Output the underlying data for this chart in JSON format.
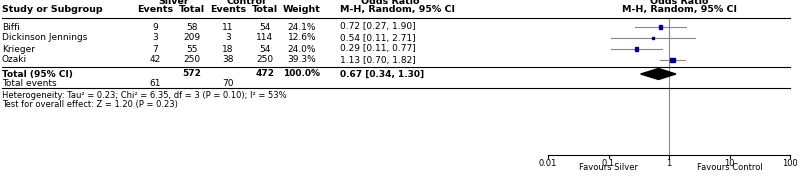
{
  "studies": [
    "Biffi",
    "Dickinson Jennings",
    "Krieger",
    "Ozaki"
  ],
  "silver_events": [
    9,
    3,
    7,
    42
  ],
  "silver_totals": [
    58,
    209,
    55,
    250
  ],
  "control_events": [
    11,
    3,
    18,
    38
  ],
  "control_totals": [
    54,
    114,
    54,
    250
  ],
  "weights": [
    "24.1%",
    "12.6%",
    "24.0%",
    "39.3%"
  ],
  "or_values": [
    0.72,
    0.54,
    0.29,
    1.13
  ],
  "or_lower": [
    0.27,
    0.11,
    0.11,
    0.7
  ],
  "or_upper": [
    1.9,
    2.71,
    0.77,
    1.82
  ],
  "or_labels": [
    "0.72 [0.27, 1.90]",
    "0.54 [0.11, 2.71]",
    "0.29 [0.11, 0.77]",
    "1.13 [0.70, 1.82]"
  ],
  "total_silver": 572,
  "total_control": 472,
  "total_silver_events": 61,
  "total_control_events": 70,
  "total_or": 0.67,
  "total_or_lower": 0.34,
  "total_or_upper": 1.3,
  "total_or_label": "0.67 [0.34, 1.30]",
  "heterogeneity_text": "Heterogeneity: Tau² = 0.23; Chi² = 6.35, df = 3 (P = 0.10); I² = 53%",
  "overall_effect_text": "Test for overall effect: Z = 1.20 (P = 0.23)",
  "col_study": "Study or Subgroup",
  "col_events": "Events",
  "col_total": "Total",
  "col_weight": "Weight",
  "col_header_silver": "Silver",
  "col_header_control": "Control",
  "col_header_or_left": "Odds Ratio",
  "col_subheader_or_left": "M-H, Random, 95% CI",
  "col_header_or_right": "Odds Ratio",
  "col_subheader_or_right": "M-H, Random, 95% CI",
  "marker_color": "#00008B",
  "line_color": "#888888",
  "xticks": [
    0.01,
    0.1,
    1,
    10,
    100
  ],
  "xtick_labels": [
    "0.01",
    "0.1",
    "1",
    "10",
    "100"
  ],
  "favours_left": "Favours Silver",
  "favours_right": "Favours Control",
  "square_sizes": [
    0.241,
    0.126,
    0.24,
    0.393
  ]
}
